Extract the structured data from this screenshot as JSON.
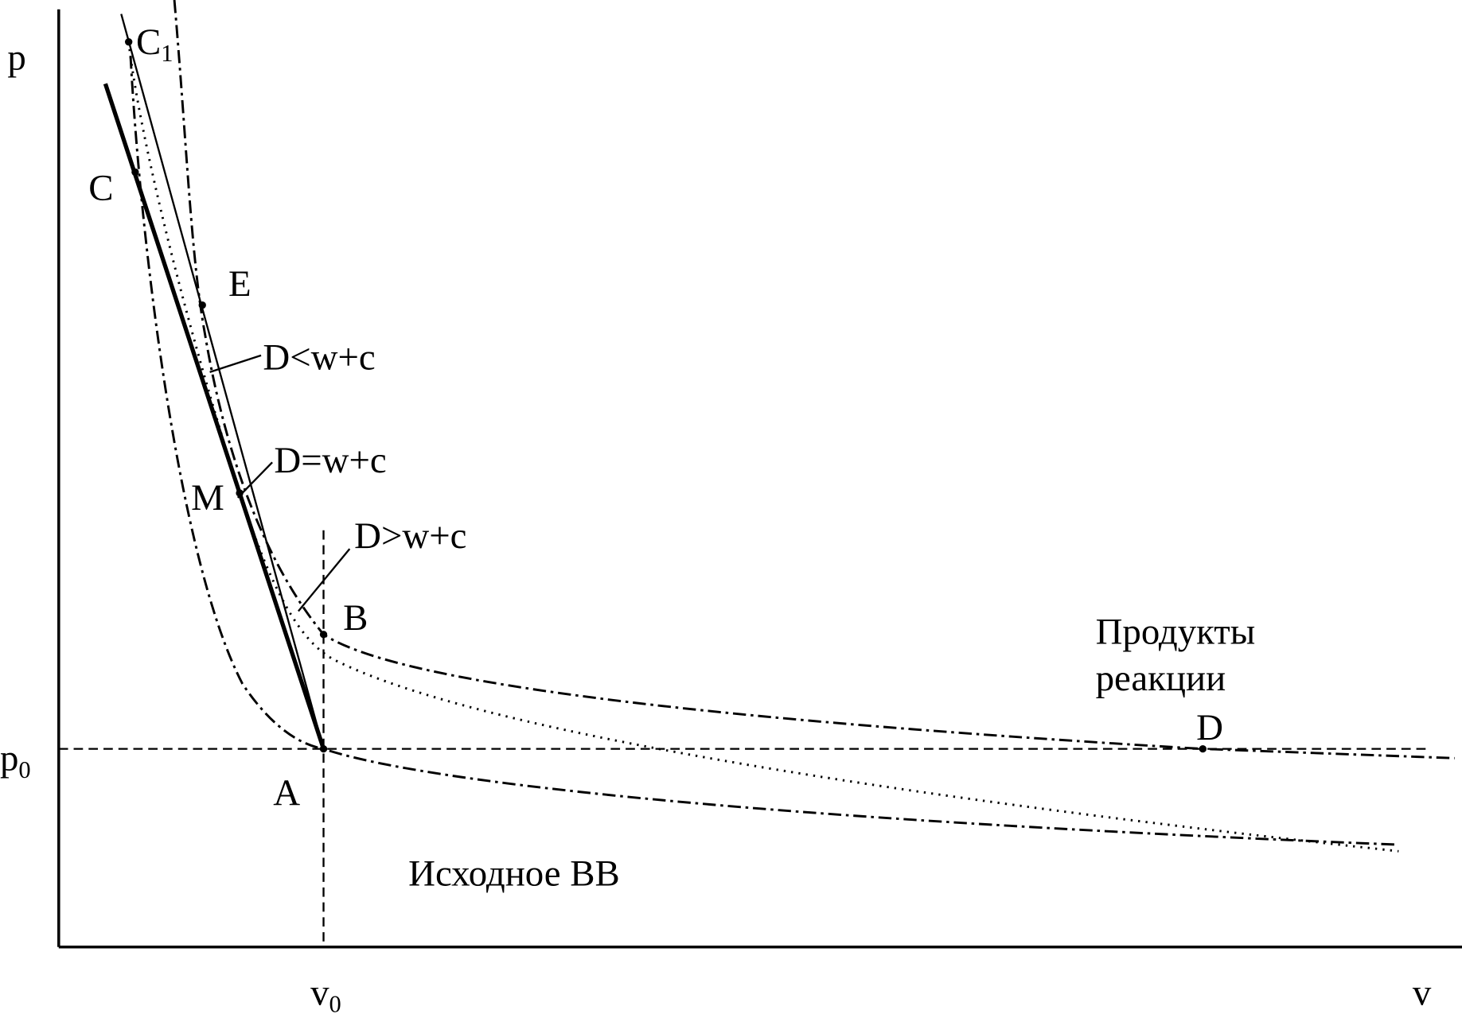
{
  "axes": {
    "y_label": "p",
    "x_label": "v",
    "p0": {
      "text": "p",
      "sub": "0"
    },
    "v0": {
      "text": "v",
      "sub": "0"
    }
  },
  "points": [
    {
      "label": "C",
      "sub": "1"
    },
    {
      "label": "C"
    },
    {
      "label": "E"
    },
    {
      "label": "M"
    },
    {
      "label": "A"
    },
    {
      "label": "B"
    },
    {
      "label": "D"
    }
  ],
  "lines": [
    "D<w+c",
    "D=w+c",
    "D>w+c"
  ],
  "regions": {
    "products": [
      "Продукты",
      "реакции"
    ],
    "initial": "Исходное ВВ"
  }
}
